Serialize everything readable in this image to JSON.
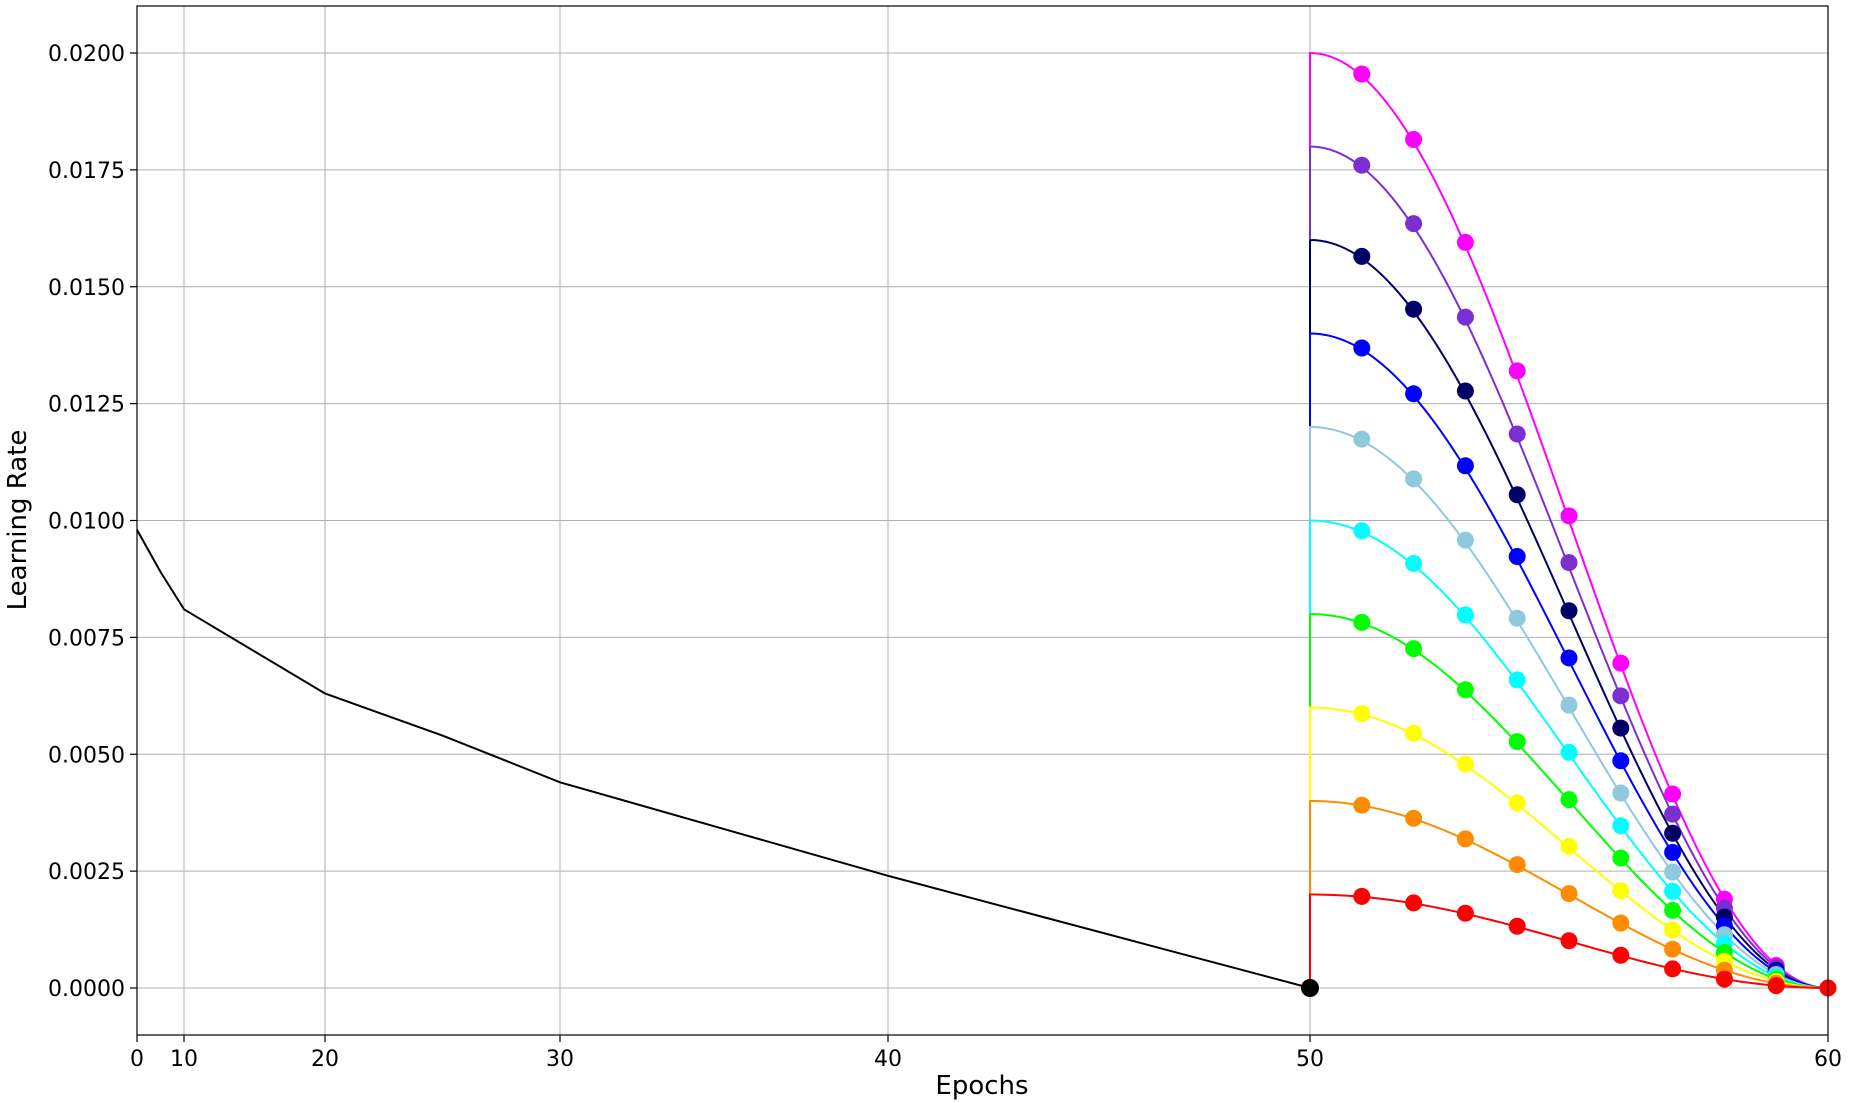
{
  "chart_data": {
    "type": "line",
    "title": "",
    "xlabel": "Epochs",
    "ylabel": "Learning Rate",
    "xlim": [
      0,
      60
    ],
    "ylim": [
      -0.001,
      0.021
    ],
    "x_axis_scale": "nonlinear: 0-10 compressed, 10-50 linear, 50-60 expanded",
    "x_ticks": [
      0,
      10,
      20,
      30,
      40,
      50,
      60
    ],
    "x_tick_labels": [
      "0",
      "10",
      "20",
      "30",
      "40",
      "50",
      "60"
    ],
    "y_ticks": [
      0.0,
      0.0025,
      0.005,
      0.0075,
      0.01,
      0.0125,
      0.015,
      0.0175,
      0.02
    ],
    "y_tick_labels": [
      "0.0000",
      "0.0025",
      "0.0050",
      "0.0075",
      "0.0100",
      "0.0125",
      "0.0150",
      "0.0175",
      "0.0200"
    ],
    "grid": true,
    "base_curve": {
      "color": "#000000",
      "x": [
        0,
        5,
        10,
        15,
        20,
        25,
        30,
        35,
        40,
        45,
        50
      ],
      "y": [
        0.0098,
        0.0089,
        0.0081,
        0.0072,
        0.0063,
        0.0054,
        0.0044,
        0.0034,
        0.0024,
        0.0012,
        0.0
      ],
      "end_marker": {
        "x": 50,
        "y": 0.0
      }
    },
    "series": [
      {
        "color": "#ff00ff",
        "peak": 0.02,
        "marker_x": [
          51,
          52,
          53,
          54,
          55,
          56,
          57,
          58,
          59
        ],
        "marker_y": [
          0.01955,
          0.01815,
          0.01595,
          0.0132,
          0.0101,
          0.00695,
          0.00415,
          0.0019,
          0.00048
        ]
      },
      {
        "color": "#7b2fd0",
        "peak": 0.018,
        "marker_x": [
          51,
          52,
          53,
          54,
          55,
          56,
          57,
          58,
          59
        ],
        "marker_y": [
          0.0176,
          0.01635,
          0.01435,
          0.01185,
          0.0091,
          0.00625,
          0.00372,
          0.00171,
          0.00043
        ]
      },
      {
        "color": "#000066",
        "peak": 0.016,
        "marker_x": [
          51,
          52,
          53,
          54,
          55,
          56,
          57,
          58,
          59
        ],
        "marker_y": [
          0.01565,
          0.01452,
          0.01277,
          0.01055,
          0.00807,
          0.00556,
          0.00331,
          0.00152,
          0.00038
        ]
      },
      {
        "color": "#0000ff",
        "peak": 0.014,
        "marker_x": [
          51,
          52,
          53,
          54,
          55,
          56,
          57,
          58,
          59
        ],
        "marker_y": [
          0.01369,
          0.01271,
          0.01117,
          0.00923,
          0.00706,
          0.00486,
          0.0029,
          0.00133,
          0.00034
        ]
      },
      {
        "color": "#8ec9de",
        "peak": 0.012,
        "marker_x": [
          51,
          52,
          53,
          54,
          55,
          56,
          57,
          58,
          59
        ],
        "marker_y": [
          0.01174,
          0.01089,
          0.00958,
          0.00791,
          0.00605,
          0.00417,
          0.00248,
          0.00114,
          0.00029
        ]
      },
      {
        "color": "#00ffff",
        "peak": 0.01,
        "marker_x": [
          51,
          52,
          53,
          54,
          55,
          56,
          57,
          58,
          59
        ],
        "marker_y": [
          0.00978,
          0.00908,
          0.00798,
          0.00659,
          0.00504,
          0.00347,
          0.00207,
          0.00095,
          0.00024
        ]
      },
      {
        "color": "#00ff00",
        "peak": 0.008,
        "marker_x": [
          51,
          52,
          53,
          54,
          55,
          56,
          57,
          58,
          59
        ],
        "marker_y": [
          0.00782,
          0.00726,
          0.00638,
          0.00527,
          0.00403,
          0.00278,
          0.00166,
          0.00076,
          0.00019
        ]
      },
      {
        "color": "#ffff00",
        "peak": 0.006,
        "marker_x": [
          51,
          52,
          53,
          54,
          55,
          56,
          57,
          58,
          59
        ],
        "marker_y": [
          0.00587,
          0.00545,
          0.00479,
          0.00396,
          0.00303,
          0.00208,
          0.00124,
          0.00057,
          0.00014
        ]
      },
      {
        "color": "#ff8c00",
        "peak": 0.004,
        "marker_x": [
          51,
          52,
          53,
          54,
          55,
          56,
          57,
          58,
          59
        ],
        "marker_y": [
          0.00391,
          0.00363,
          0.00319,
          0.00264,
          0.00202,
          0.00139,
          0.00083,
          0.00038,
          0.0001
        ]
      },
      {
        "color": "#ff0000",
        "peak": 0.002,
        "marker_x": [
          51,
          52,
          53,
          54,
          55,
          56,
          57,
          58,
          59,
          60
        ],
        "marker_y": [
          0.00196,
          0.00182,
          0.0016,
          0.00132,
          0.00101,
          0.0007,
          0.00041,
          0.00019,
          5e-05,
          0.0
        ]
      }
    ]
  }
}
